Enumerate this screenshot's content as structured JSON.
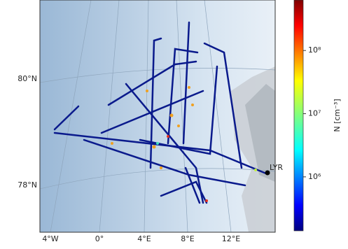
{
  "map": {
    "latitude_labels": [
      "80°N",
      "78°N"
    ],
    "longitude_labels": [
      "4°W",
      "0°",
      "4°E",
      "8°E",
      "12°E"
    ],
    "station": "LYR"
  },
  "colorbar": {
    "label": "N [cm⁻³]",
    "scale": "log",
    "colormap": "jet",
    "lim": [
      140000,
      630000000
    ],
    "ticks": [
      {
        "value": 1000000,
        "label": "10⁶"
      },
      {
        "value": 10000000,
        "label": "10⁷"
      },
      {
        "value": 100000000,
        "label": "10⁸"
      }
    ]
  }
}
